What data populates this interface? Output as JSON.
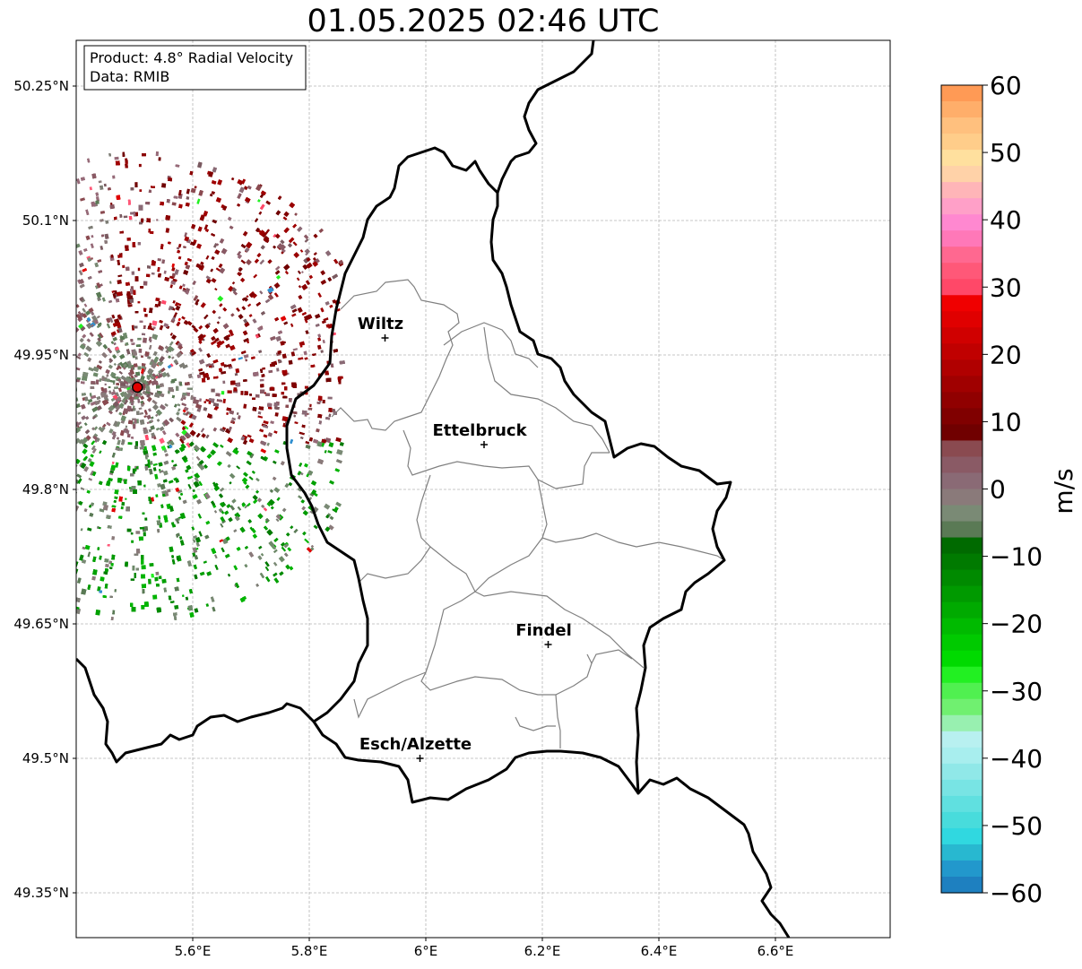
{
  "title": "01.05.2025 02:46 UTC",
  "info_box": {
    "product": "Product: 4.8° Radial Velocity",
    "data_source": "Data: RMIB"
  },
  "lat_labels": [
    "50.25°N",
    "50.1°N",
    "49.95°N",
    "49.8°N",
    "49.65°N",
    "49.5°N",
    "49.35°N"
  ],
  "lon_labels": [
    "5.6°E",
    "5.8°E",
    "6°E",
    "6.2°E",
    "6.4°E",
    "6.6°E"
  ],
  "cities": [
    {
      "name": "Wiltz",
      "lon": 5.93,
      "lat": 49.969
    },
    {
      "name": "Ettelbruck",
      "lon": 6.1,
      "lat": 49.85
    },
    {
      "name": "Findel",
      "lon": 6.21,
      "lat": 49.627
    },
    {
      "name": "Esch/Alzette",
      "lon": 5.99,
      "lat": 49.5
    }
  ],
  "radar_site": {
    "lon": 5.505,
    "lat": 49.914
  },
  "colorbar": {
    "unit": "m/s",
    "min": -60,
    "max": 60,
    "tick_labels": [
      "60",
      "50",
      "40",
      "30",
      "20",
      "10",
      "0",
      "−10",
      "−20",
      "−30",
      "−40",
      "−50",
      "−60"
    ],
    "colors_top_to_bottom": [
      "#ff9a55",
      "#ffae6a",
      "#ffc07e",
      "#ffcd8a",
      "#ffe09e",
      "#ffd2a8",
      "#ffb5b8",
      "#ffa0c8",
      "#ff88d0",
      "#ff78b8",
      "#ff6890",
      "#ff5878",
      "#ff4868",
      "#f00000",
      "#e00000",
      "#d00000",
      "#c00000",
      "#b00000",
      "#a00000",
      "#900000",
      "#800000",
      "#700000",
      "#8a4a50",
      "#8a5a65",
      "#8a6a75",
      "#8a7a7a",
      "#7a8a75",
      "#5a7a55",
      "#006a00",
      "#007a00",
      "#008a00",
      "#009a00",
      "#00aa00",
      "#00ba00",
      "#00ca00",
      "#00da00",
      "#22f022",
      "#50f050",
      "#70f070",
      "#98f0b0",
      "#b8f0f0",
      "#a8eeee",
      "#90e8e8",
      "#78e4e4",
      "#60e0e0",
      "#48dcdc",
      "#30d8e0",
      "#28b8d0",
      "#2298cc",
      "#1e80c0"
    ]
  }
}
